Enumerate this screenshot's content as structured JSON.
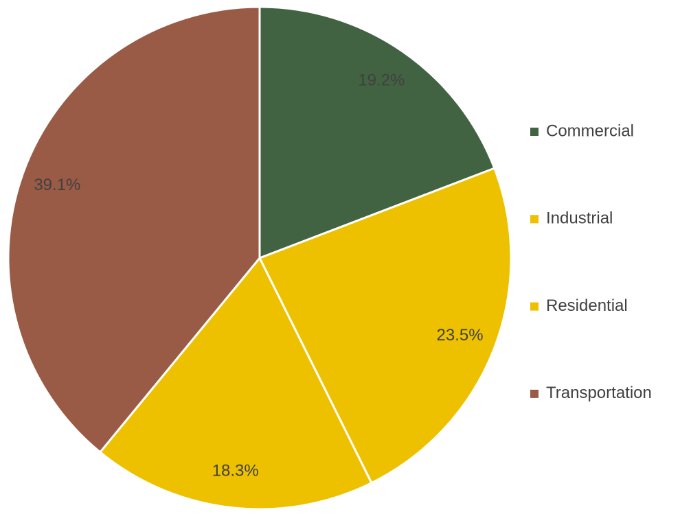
{
  "chart_data": {
    "type": "pie",
    "categories": [
      "Commercial",
      "Industrial",
      "Residential",
      "Transportation"
    ],
    "values": [
      19.2,
      23.5,
      18.3,
      39.1
    ],
    "value_labels": [
      "19.2%",
      "23.5%",
      "18.3%",
      "39.1%"
    ],
    "colors": [
      "#426342",
      "#edc100",
      "#edc100",
      "#9a5b46"
    ],
    "legend": "right"
  }
}
